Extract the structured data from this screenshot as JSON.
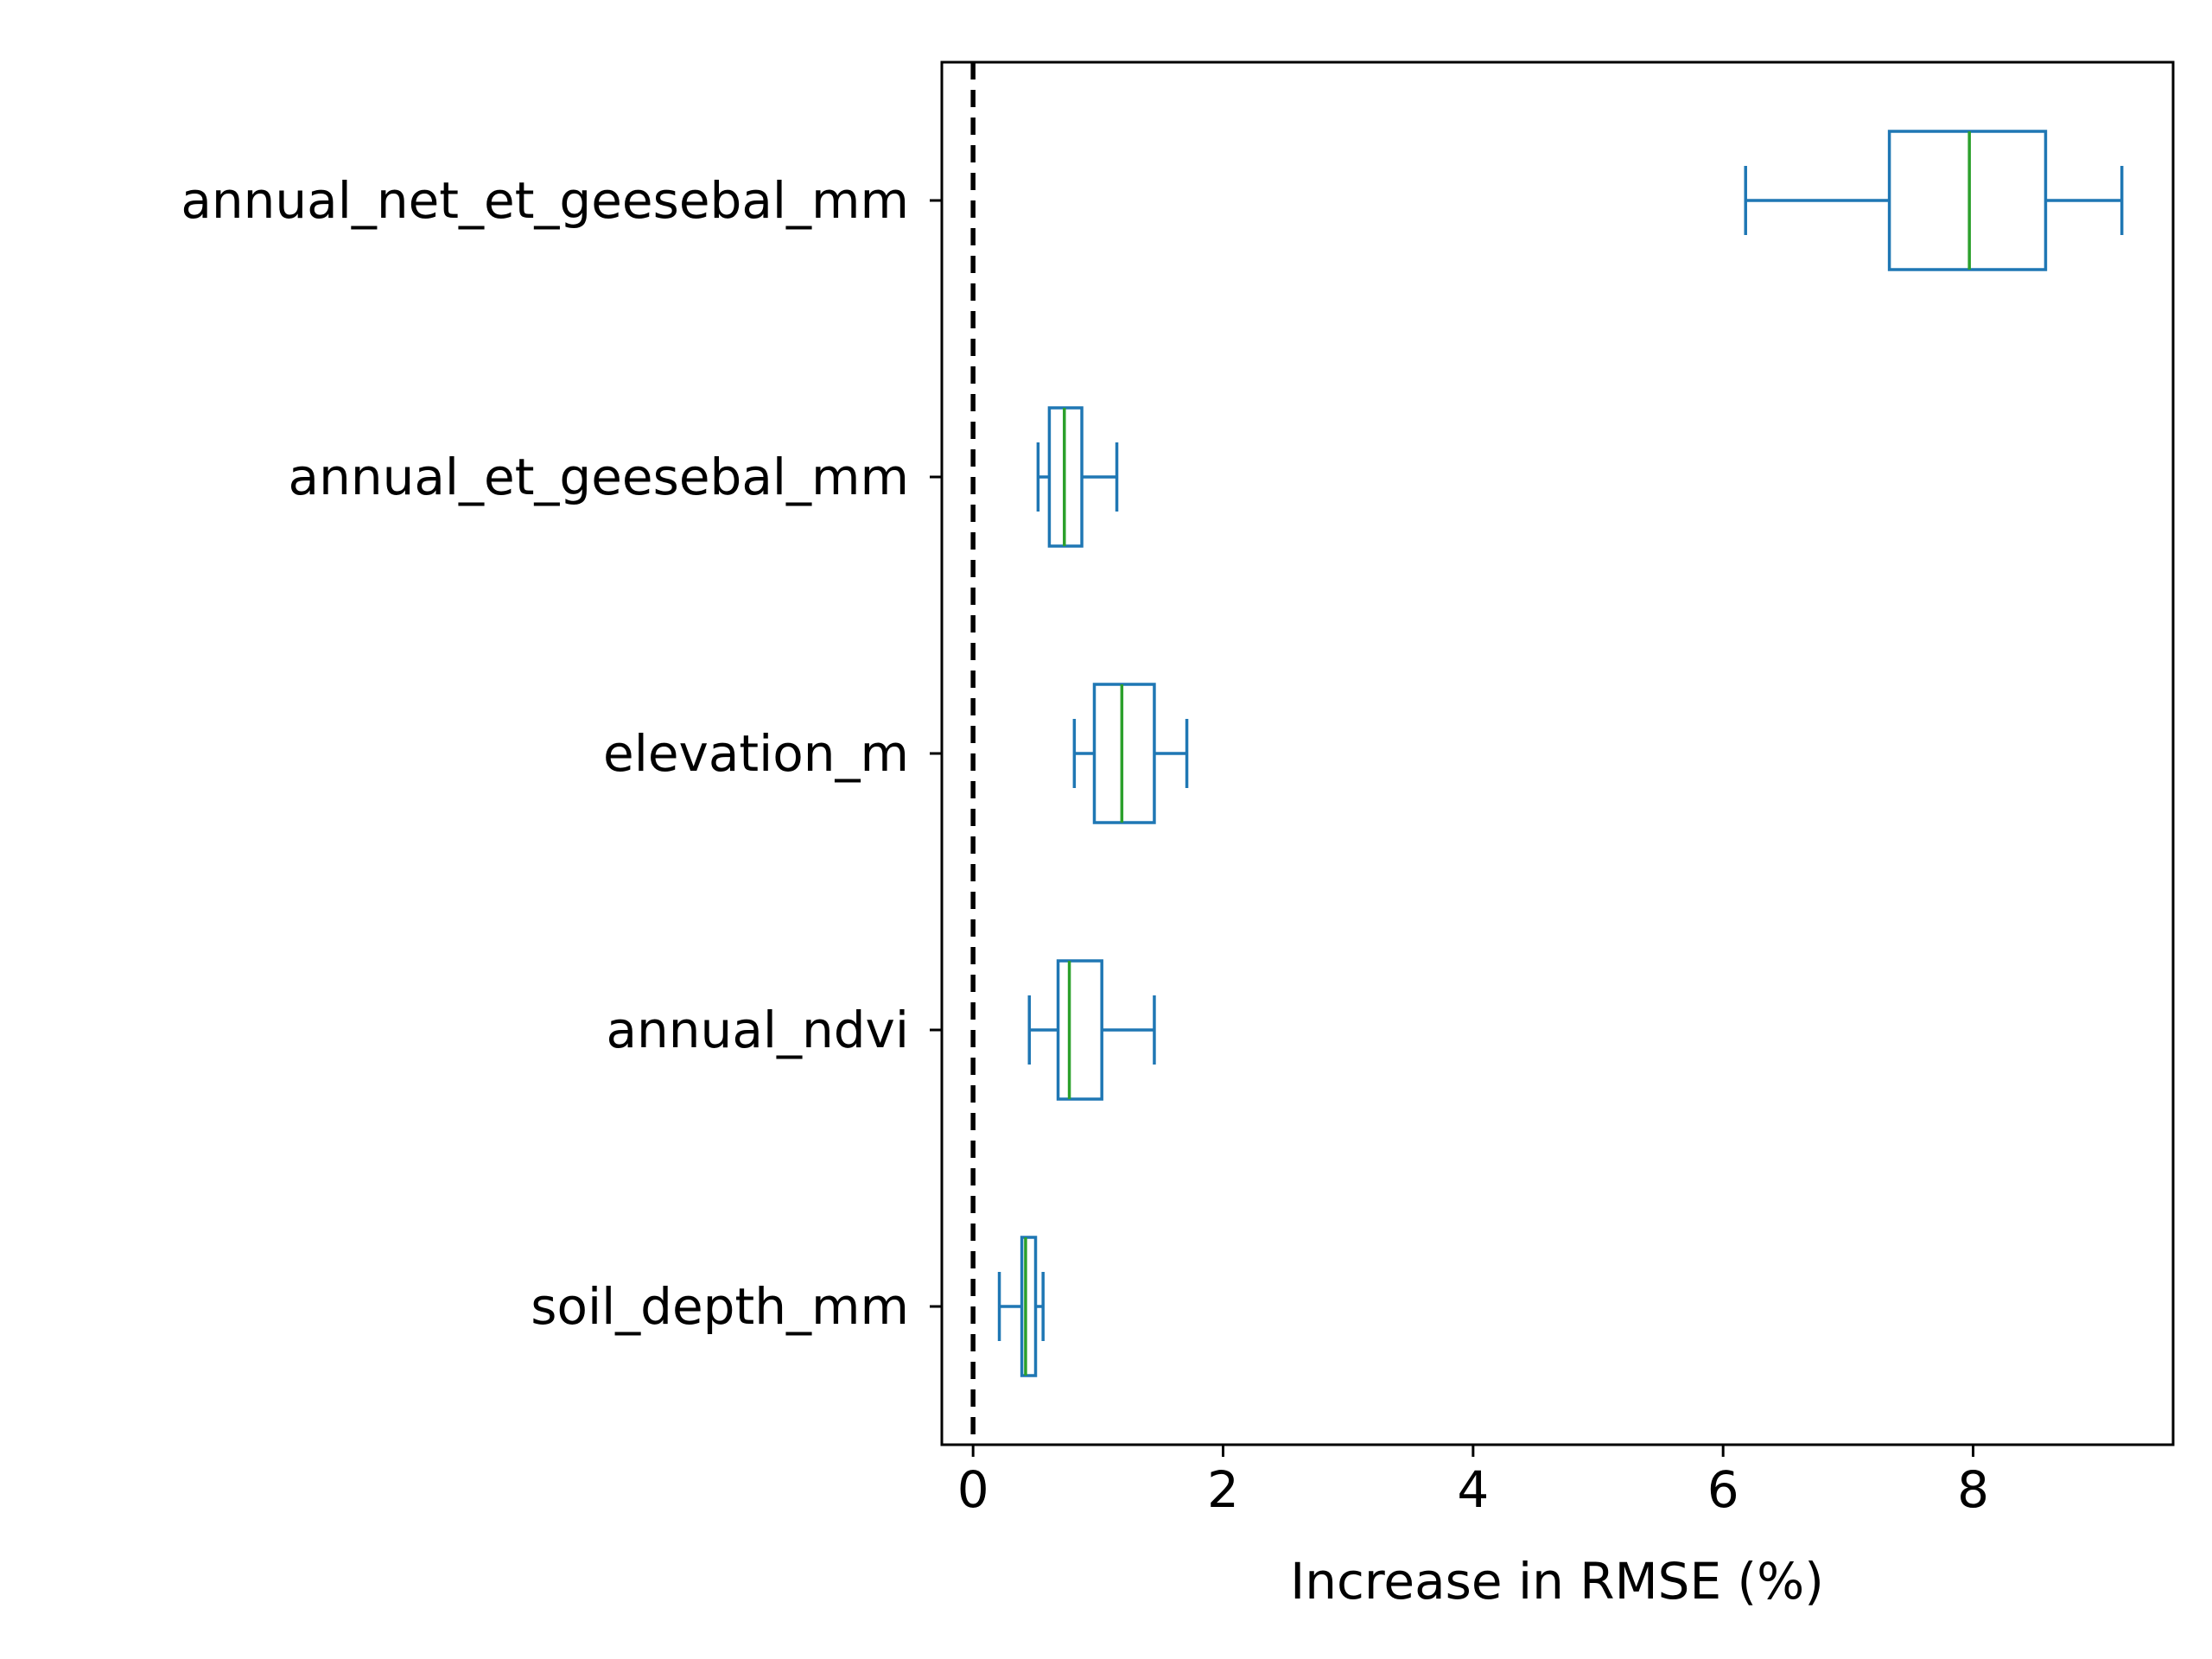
{
  "chart_data": {
    "type": "boxplot",
    "orientation": "horizontal",
    "title": "",
    "xlabel": "Increase in RMSE (%)",
    "ylabel": "",
    "xlim": [
      -0.25,
      9.6
    ],
    "xticks": [
      0,
      2,
      4,
      6,
      8
    ],
    "xtick_labels": [
      "0",
      "2",
      "4",
      "6",
      "8"
    ],
    "reference_line": {
      "x": 0,
      "style": "dashed",
      "color": "#000000"
    },
    "grid": false,
    "legend": "none",
    "colors": {
      "box": "#1f77b4",
      "median": "#2ca02c",
      "axis": "#000000"
    },
    "categories": [
      "annual_net_et_geesebal_mm",
      "annual_et_geesebal_mm",
      "elevation_m",
      "annual_ndvi",
      "soil_depth_mm"
    ],
    "boxes": [
      {
        "category": "annual_net_et_geesebal_mm",
        "whisker_low": 6.18,
        "q1": 7.33,
        "median": 7.97,
        "q3": 8.58,
        "whisker_high": 9.19
      },
      {
        "category": "annual_et_geesebal_mm",
        "whisker_low": 0.52,
        "q1": 0.61,
        "median": 0.73,
        "q3": 0.87,
        "whisker_high": 1.15
      },
      {
        "category": "elevation_m",
        "whisker_low": 0.81,
        "q1": 0.97,
        "median": 1.19,
        "q3": 1.45,
        "whisker_high": 1.71
      },
      {
        "category": "annual_ndvi",
        "whisker_low": 0.45,
        "q1": 0.68,
        "median": 0.77,
        "q3": 1.03,
        "whisker_high": 1.45
      },
      {
        "category": "soil_depth_mm",
        "whisker_low": 0.21,
        "q1": 0.39,
        "median": 0.42,
        "q3": 0.5,
        "whisker_high": 0.56
      }
    ]
  }
}
